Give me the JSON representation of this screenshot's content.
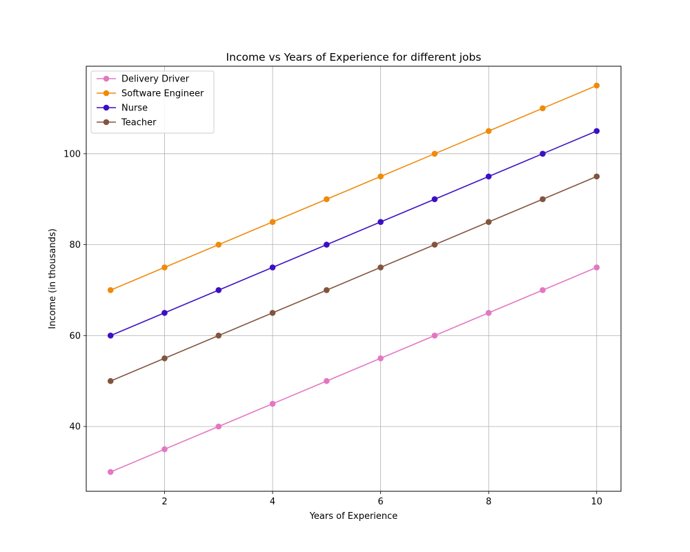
{
  "chart_data": {
    "type": "line",
    "title": "Income vs Years of Experience for different jobs",
    "xlabel": "Years of Experience",
    "ylabel": "Income (in thousands)",
    "x": [
      1,
      2,
      3,
      4,
      5,
      6,
      7,
      8,
      9,
      10
    ],
    "xlim": [
      0.55,
      10.45
    ],
    "ylim": [
      25.75,
      119.25
    ],
    "xticks": [
      2,
      4,
      6,
      8,
      10
    ],
    "yticks": [
      40,
      60,
      80,
      100
    ],
    "grid": true,
    "legend_position": "top-left",
    "series": [
      {
        "name": "Delivery Driver",
        "color": "#e377c2",
        "values": [
          30,
          35,
          40,
          45,
          50,
          55,
          60,
          65,
          70,
          75
        ]
      },
      {
        "name": "Software Engineer",
        "color": "#ef8a0a",
        "values": [
          70,
          75,
          80,
          85,
          90,
          95,
          100,
          105,
          110,
          115
        ]
      },
      {
        "name": "Nurse",
        "color": "#3c0fc4",
        "values": [
          60,
          65,
          70,
          75,
          80,
          85,
          90,
          95,
          100,
          105
        ]
      },
      {
        "name": "Teacher",
        "color": "#82543e",
        "values": [
          50,
          55,
          60,
          65,
          70,
          75,
          80,
          85,
          90,
          95
        ]
      }
    ]
  }
}
